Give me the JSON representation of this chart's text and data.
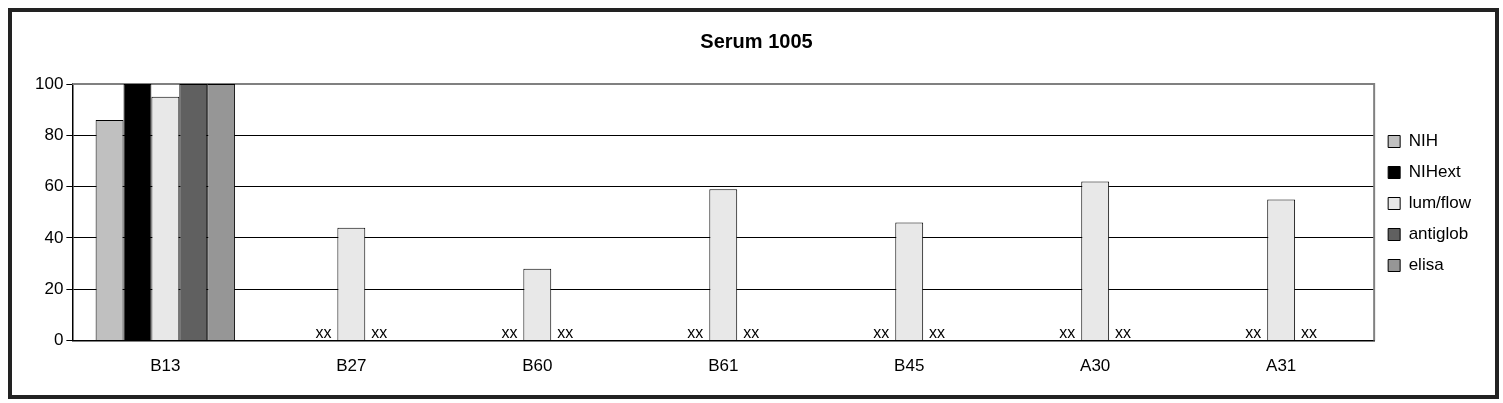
{
  "chart_data": {
    "type": "bar",
    "title": "Serum 1005",
    "categories": [
      "B13",
      "B27",
      "B60",
      "B61",
      "B45",
      "A30",
      "A31"
    ],
    "series": [
      {
        "name": "NIH",
        "color": "#c0c0c0",
        "values": [
          86,
          null,
          null,
          null,
          null,
          null,
          null
        ]
      },
      {
        "name": "NIHext",
        "color": "#000000",
        "values": [
          100,
          null,
          null,
          null,
          null,
          null,
          null
        ],
        "value_labels": [
          null,
          "xx",
          "xx",
          "xx",
          "xx",
          "xx",
          "xx"
        ]
      },
      {
        "name": "lum/flow",
        "color": "#e8e8e8",
        "values": [
          95,
          44,
          28,
          59,
          46,
          62,
          55
        ]
      },
      {
        "name": "antiglob",
        "color": "#606060",
        "values": [
          100,
          null,
          null,
          null,
          null,
          null,
          null
        ],
        "value_labels": [
          null,
          "xx",
          "xx",
          "xx",
          "xx",
          "xx",
          "xx"
        ]
      },
      {
        "name": "elisa",
        "color": "#969696",
        "values": [
          100,
          null,
          null,
          null,
          null,
          null,
          null
        ]
      }
    ],
    "ylim": [
      0,
      100
    ],
    "yticks": [
      0,
      20,
      40,
      60,
      80,
      100
    ],
    "grid": "y",
    "legend": "right"
  }
}
